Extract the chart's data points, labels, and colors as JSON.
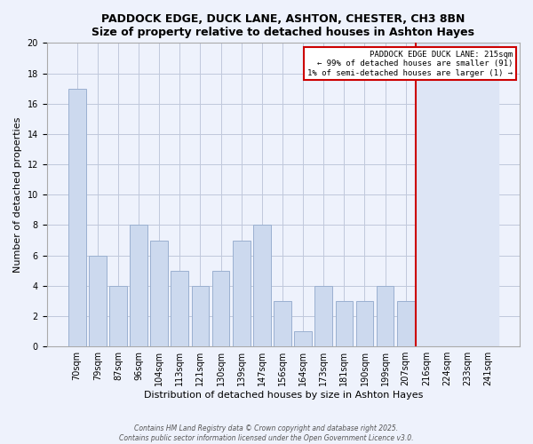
{
  "title": "PADDOCK EDGE, DUCK LANE, ASHTON, CHESTER, CH3 8BN",
  "subtitle": "Size of property relative to detached houses in Ashton Hayes",
  "xlabel": "Distribution of detached houses by size in Ashton Hayes",
  "ylabel": "Number of detached properties",
  "bin_labels": [
    "70sqm",
    "79sqm",
    "87sqm",
    "96sqm",
    "104sqm",
    "113sqm",
    "121sqm",
    "130sqm",
    "139sqm",
    "147sqm",
    "156sqm",
    "164sqm",
    "173sqm",
    "181sqm",
    "190sqm",
    "199sqm",
    "207sqm",
    "216sqm",
    "224sqm",
    "233sqm",
    "241sqm"
  ],
  "bar_values": [
    17,
    6,
    4,
    8,
    7,
    5,
    4,
    5,
    7,
    8,
    3,
    1,
    4,
    3,
    3,
    4,
    3,
    0,
    0,
    0,
    0
  ],
  "bar_color": "#ccd9ee",
  "bar_edge_color": "#9ab0d0",
  "highlight_line_color": "#cc0000",
  "highlight_line_index": 17,
  "right_bg_color": "#dde5f5",
  "annotation_title": "PADDOCK EDGE DUCK LANE: 215sqm",
  "annotation_line1": "← 99% of detached houses are smaller (91)",
  "annotation_line2": "1% of semi-detached houses are larger (1) →",
  "annotation_box_color": "#cc0000",
  "annotation_bg_color": "#ffffff",
  "ylim": [
    0,
    20
  ],
  "yticks": [
    0,
    2,
    4,
    6,
    8,
    10,
    12,
    14,
    16,
    18,
    20
  ],
  "footer1": "Contains HM Land Registry data © Crown copyright and database right 2025.",
  "footer2": "Contains public sector information licensed under the Open Government Licence v3.0.",
  "background_color": "#eef2fc",
  "grid_color": "#c0c8dc",
  "title_fontsize": 9,
  "axis_label_fontsize": 8,
  "tick_fontsize": 7
}
